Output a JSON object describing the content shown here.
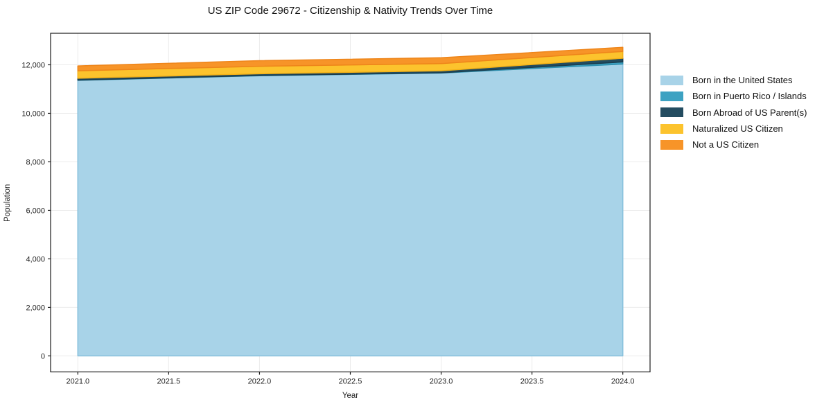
{
  "chart_data": {
    "type": "area",
    "stacked": true,
    "title": "US ZIP Code 29672 - Citizenship & Nativity Trends Over Time",
    "xlabel": "Year",
    "ylabel": "Population",
    "x": [
      2021,
      2022,
      2023,
      2024
    ],
    "series": [
      {
        "name": "Born in the United States",
        "values": [
          11360,
          11550,
          11660,
          12030
        ],
        "color": "#a8d3e8",
        "edge": "#86c0dc"
      },
      {
        "name": "Born in Puerto Rico / Islands",
        "values": [
          10,
          10,
          10,
          90
        ],
        "color": "#3da2c2",
        "edge": "#2e8fae"
      },
      {
        "name": "Born Abroad of US Parent(s)",
        "values": [
          75,
          70,
          85,
          150
        ],
        "color": "#234c60",
        "edge": "#1a3c4d"
      },
      {
        "name": "Naturalized US Citizen",
        "values": [
          310,
          310,
          295,
          280
        ],
        "color": "#fcc32d",
        "edge": "#f3b117"
      },
      {
        "name": "Not a US Citizen",
        "values": [
          200,
          230,
          240,
          170
        ],
        "color": "#f79428",
        "edge": "#ee851a"
      }
    ],
    "totals": [
      11955,
      12170,
      12290,
      12720
    ],
    "xlim": [
      2020.85,
      2024.15
    ],
    "ylim": [
      -660,
      13300
    ],
    "x_ticks": [
      {
        "v": 2021.0,
        "label": "2021.0"
      },
      {
        "v": 2021.5,
        "label": "2021.5"
      },
      {
        "v": 2022.0,
        "label": "2022.0"
      },
      {
        "v": 2022.5,
        "label": "2022.5"
      },
      {
        "v": 2023.0,
        "label": "2023.0"
      },
      {
        "v": 2023.5,
        "label": "2023.5"
      },
      {
        "v": 2024.0,
        "label": "2024.0"
      }
    ],
    "y_ticks": [
      {
        "v": 0,
        "label": "0"
      },
      {
        "v": 2000,
        "label": "2,000"
      },
      {
        "v": 4000,
        "label": "4,000"
      },
      {
        "v": 6000,
        "label": "6,000"
      },
      {
        "v": 8000,
        "label": "8,000"
      },
      {
        "v": 10000,
        "label": "10,000"
      },
      {
        "v": 12000,
        "label": "12,000"
      }
    ],
    "grid": true,
    "legend_position": "right-outside",
    "colors": {
      "background": "#ffffff",
      "gridline": "#ebebeb",
      "spine": "#1a1a1a",
      "tick_label": "#222222"
    }
  }
}
